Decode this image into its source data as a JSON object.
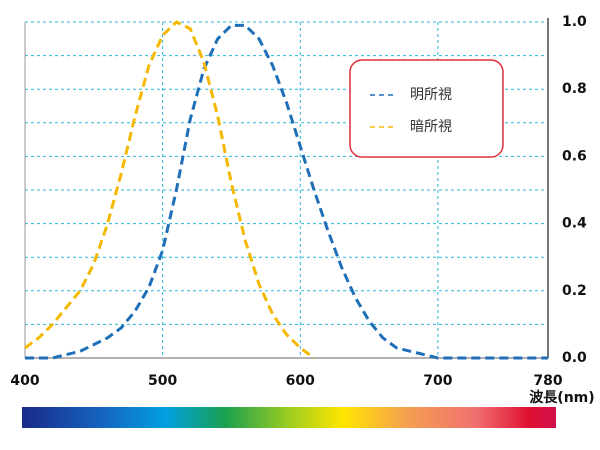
{
  "chart_data": {
    "type": "line",
    "x_label": "波長(nm)",
    "x": [
      400,
      410,
      420,
      430,
      440,
      450,
      460,
      470,
      480,
      490,
      500,
      510,
      520,
      530,
      540,
      550,
      560,
      570,
      580,
      590,
      600,
      610,
      620,
      630,
      640,
      650,
      660,
      670,
      680,
      690,
      700,
      710,
      720,
      730,
      740,
      750,
      760,
      770,
      780
    ],
    "series": [
      {
        "name": "明所視",
        "color": "#1f6fb8",
        "values": [
          0,
          0,
          0,
          0.01,
          0.02,
          0.04,
          0.06,
          0.09,
          0.14,
          0.21,
          0.32,
          0.5,
          0.71,
          0.86,
          0.95,
          0.99,
          0.99,
          0.95,
          0.87,
          0.76,
          0.63,
          0.5,
          0.38,
          0.27,
          0.18,
          0.11,
          0.06,
          0.03,
          0.02,
          0.01,
          0,
          0,
          0,
          0,
          0,
          0,
          0,
          0,
          0
        ]
      },
      {
        "name": "暗所視",
        "color": "#f5b800",
        "values": [
          0.03,
          0.06,
          0.1,
          0.15,
          0.2,
          0.28,
          0.4,
          0.55,
          0.72,
          0.87,
          0.96,
          1.0,
          0.98,
          0.88,
          0.72,
          0.52,
          0.35,
          0.22,
          0.13,
          0.07,
          0.03,
          0,
          null,
          null,
          null,
          null,
          null,
          null,
          null,
          null,
          null,
          null,
          null,
          null,
          null,
          null,
          null,
          null,
          null
        ]
      }
    ],
    "xlim": [
      400,
      780
    ],
    "xticks": [
      400,
      500,
      600,
      700,
      780
    ],
    "ylim": [
      0,
      1.0
    ],
    "yticks": [
      {
        "value": 0,
        "label": "0.0"
      },
      0.2,
      0.4,
      0.6,
      0.8,
      {
        "value": 1.0,
        "label": "1.0"
      }
    ],
    "yminorticks": [
      0.1,
      0.3,
      0.5,
      0.7,
      0.9
    ],
    "grid": true,
    "grid_color": "#29b6d6",
    "legend": "upper right"
  }
}
